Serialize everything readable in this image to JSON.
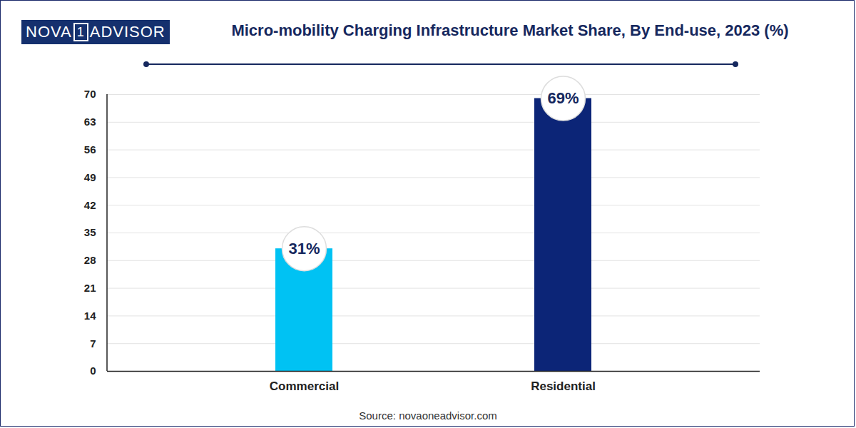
{
  "chart_data": {
    "type": "bar",
    "title": "Micro-mobility Charging Infrastructure Market Share, By End-use, 2023 (%)",
    "brand": [
      "NOVA",
      "1",
      "ADVISOR"
    ],
    "source": "Source: novaoneadvisor.com",
    "categories": [
      "Commercial",
      "Residential"
    ],
    "values": [
      31,
      69
    ],
    "value_labels": [
      "31%",
      "69%"
    ],
    "colors": [
      "#00c2f3",
      "#0c2577"
    ],
    "ylim": [
      0,
      70
    ],
    "yticks": [
      0,
      7,
      14,
      21,
      28,
      35,
      42,
      49,
      56,
      63,
      70
    ],
    "grid": true,
    "data_labels": true
  }
}
